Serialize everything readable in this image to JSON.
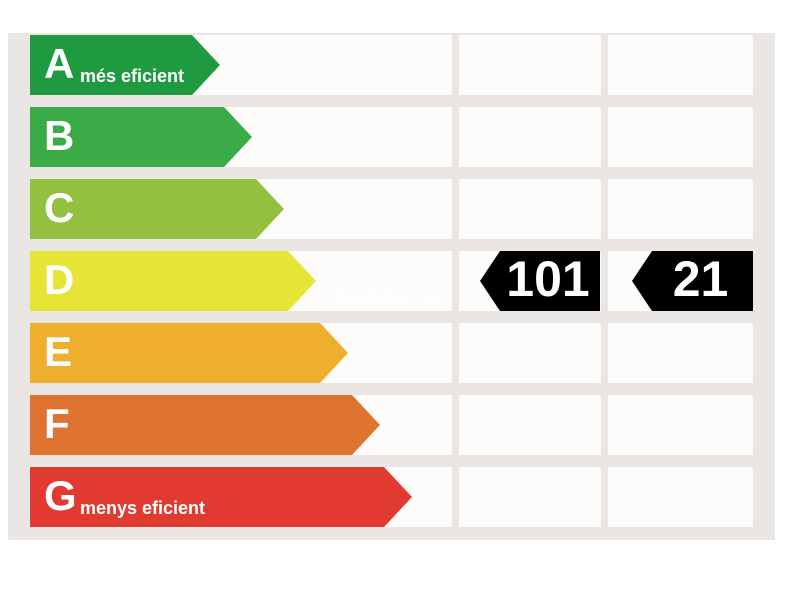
{
  "classes": [
    {
      "letter": "A",
      "note": "més eficient",
      "color": "#1f9a40"
    },
    {
      "letter": "B",
      "color": "#3aab47"
    },
    {
      "letter": "C",
      "color": "#93c13f"
    },
    {
      "letter": "D",
      "color": "#e6e536"
    },
    {
      "letter": "E",
      "color": "#eeaf2f"
    },
    {
      "letter": "F",
      "color": "#df7430"
    },
    {
      "letter": "G",
      "note": "menys eficient",
      "color": "#e03a31"
    }
  ],
  "watermark": "habitaclia",
  "indicators": [
    101,
    21
  ]
}
